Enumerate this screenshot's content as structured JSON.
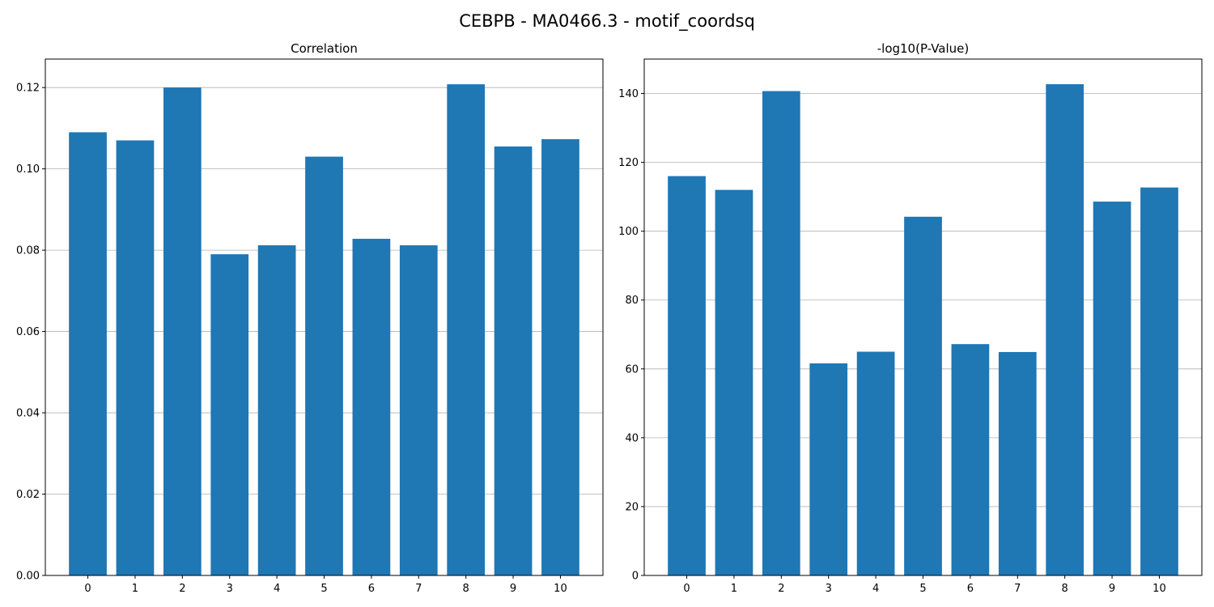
{
  "figure_title": "CEBPB - MA0466.3 - motif_coordsq",
  "bar_color": "#1f77b4",
  "chart_data": [
    {
      "type": "bar",
      "title": "Correlation",
      "xlabel": "",
      "ylabel": "",
      "categories": [
        "0",
        "1",
        "2",
        "3",
        "4",
        "5",
        "6",
        "7",
        "8",
        "9",
        "10"
      ],
      "values": [
        0.109,
        0.107,
        0.12,
        0.079,
        0.0812,
        0.103,
        0.0828,
        0.0812,
        0.1208,
        0.1055,
        0.1073
      ],
      "ylim": [
        0,
        0.127
      ],
      "yticks": [
        0.0,
        0.02,
        0.04,
        0.06,
        0.08,
        0.1,
        0.12
      ],
      "ytick_labels": [
        "0.00",
        "0.02",
        "0.04",
        "0.06",
        "0.08",
        "0.10",
        "0.12"
      ],
      "grid": "y"
    },
    {
      "type": "bar",
      "title": "-log10(P-Value)",
      "xlabel": "",
      "ylabel": "",
      "categories": [
        "0",
        "1",
        "2",
        "3",
        "4",
        "5",
        "6",
        "7",
        "8",
        "9",
        "10"
      ],
      "values": [
        116,
        112,
        140.7,
        61.6,
        65,
        104.2,
        67.2,
        64.9,
        142.7,
        108.6,
        112.7
      ],
      "ylim": [
        0,
        150
      ],
      "yticks": [
        0,
        20,
        40,
        60,
        80,
        100,
        120,
        140
      ],
      "ytick_labels": [
        "0",
        "20",
        "40",
        "60",
        "80",
        "100",
        "120",
        "140"
      ],
      "grid": "y"
    }
  ]
}
